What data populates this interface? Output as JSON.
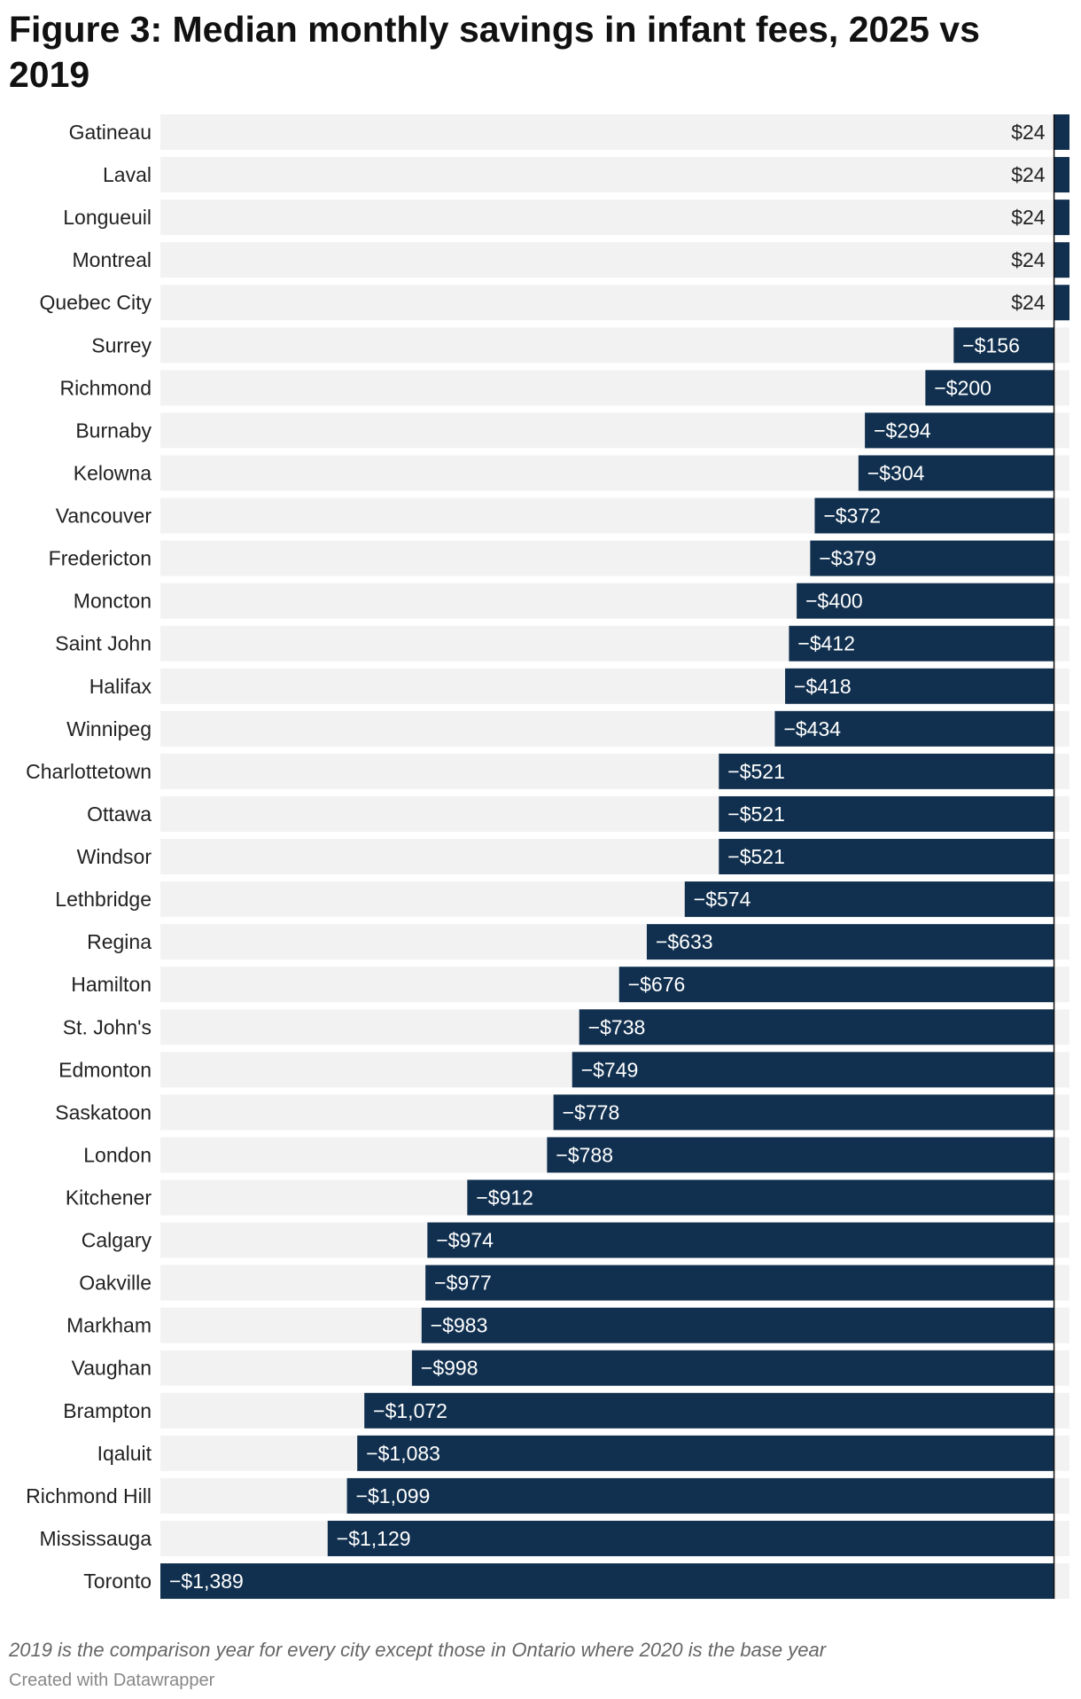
{
  "chart_data": {
    "type": "bar",
    "orientation": "horizontal",
    "title": "Figure 3: Median monthly savings in infant fees, 2025 vs 2019",
    "categories": [
      "Gatineau",
      "Laval",
      "Longueuil",
      "Montreal",
      "Quebec City",
      "Surrey",
      "Richmond",
      "Burnaby",
      "Kelowna",
      "Vancouver",
      "Fredericton",
      "Moncton",
      "Saint John",
      "Halifax",
      "Winnipeg",
      "Charlottetown",
      "Ottawa",
      "Windsor",
      "Lethbridge",
      "Regina",
      "Hamilton",
      "St. John's",
      "Edmonton",
      "Saskatoon",
      "London",
      "Kitchener",
      "Calgary",
      "Oakville",
      "Markham",
      "Vaughan",
      "Brampton",
      "Iqaluit",
      "Richmond Hill",
      "Mississauga",
      "Toronto"
    ],
    "values": [
      24,
      24,
      24,
      24,
      24,
      -156,
      -200,
      -294,
      -304,
      -372,
      -379,
      -400,
      -412,
      -418,
      -434,
      -521,
      -521,
      -521,
      -574,
      -633,
      -676,
      -738,
      -749,
      -778,
      -788,
      -912,
      -974,
      -977,
      -983,
      -998,
      -1072,
      -1083,
      -1099,
      -1129,
      -1389
    ],
    "value_labels": [
      "$24",
      "$24",
      "$24",
      "$24",
      "$24",
      "−$156",
      "−$200",
      "−$294",
      "−$304",
      "−$372",
      "−$379",
      "−$400",
      "−$412",
      "−$418",
      "−$434",
      "−$521",
      "−$521",
      "−$521",
      "−$574",
      "−$633",
      "−$676",
      "−$738",
      "−$749",
      "−$778",
      "−$788",
      "−$912",
      "−$974",
      "−$977",
      "−$983",
      "−$998",
      "−$1,072",
      "−$1,083",
      "−$1,099",
      "−$1,129",
      "−$1,389"
    ],
    "xlim": [
      -1389,
      24
    ],
    "xlabel": "",
    "ylabel": "",
    "bar_color": "#11304f",
    "background_color": "#f2f2f2"
  },
  "footer": {
    "note": "2019 is the comparison year for every city except those in Ontario where 2020 is the base year",
    "credit": "Created with Datawrapper"
  }
}
